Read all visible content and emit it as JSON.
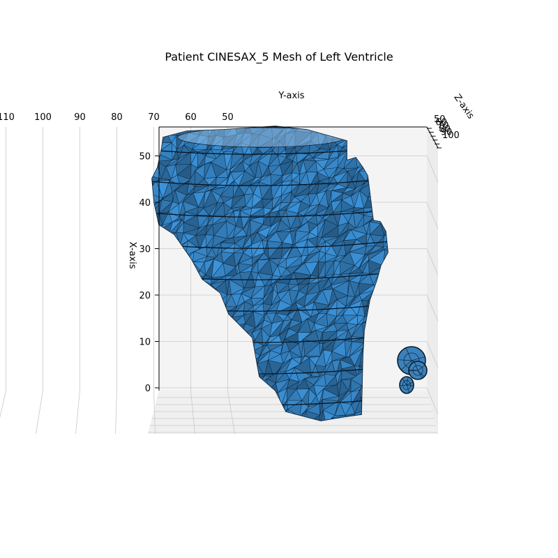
{
  "chart_data": {
    "type": "surface3d",
    "title": "Patient CINESAX_5 Mesh of Left Ventricle",
    "xlabel": "X-axis",
    "ylabel": "Y-axis",
    "zlabel": "Z-axis",
    "x_ticks": [
      0,
      10,
      20,
      30,
      40,
      50
    ],
    "y_ticks": [
      110,
      100,
      90,
      80,
      70,
      60,
      50
    ],
    "z_ticks": [
      50,
      60,
      70,
      80,
      90,
      100
    ],
    "xlim": [
      -8,
      55
    ],
    "ylim": [
      42,
      120
    ],
    "zlim": [
      50,
      100
    ],
    "grid": true,
    "mesh_color": "#3b82bd",
    "edge_color": "#0b1b2a",
    "pane_color": "#f2f2f2"
  }
}
